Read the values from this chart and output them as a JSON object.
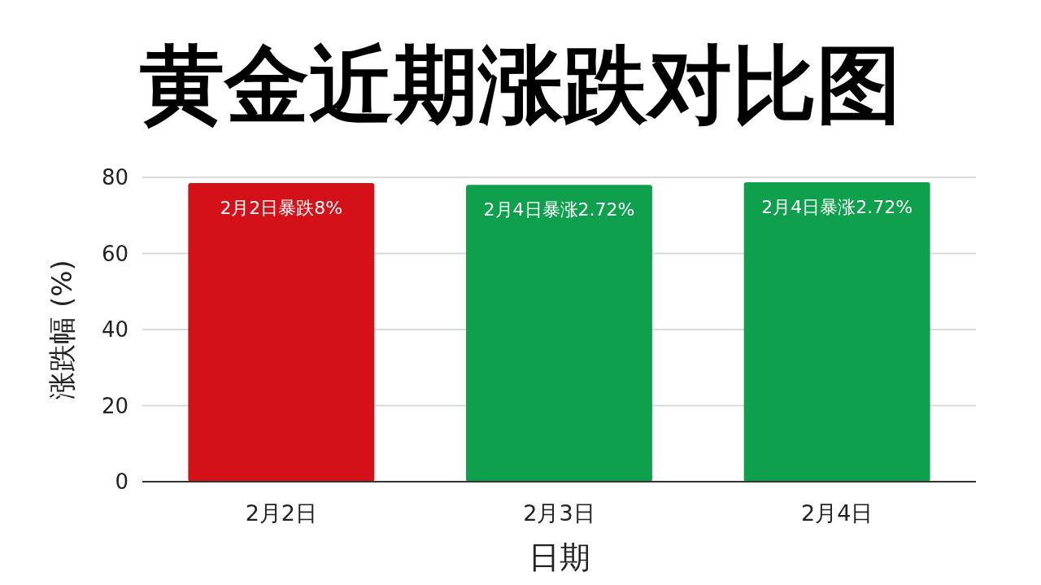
{
  "chart_data": {
    "type": "bar",
    "title": "黄金近期涨跌对比图",
    "xlabel": "日期",
    "ylabel": "涨跌幅 (%)",
    "categories": [
      "2月2日",
      "2月3日",
      "2月4日"
    ],
    "values": [
      78.5,
      78,
      78.7
    ],
    "colors": [
      "#d41118",
      "#0ea04c",
      "#0ea04c"
    ],
    "annotations": [
      {
        "text": "2月2日暴跌8%",
        "x": "2月2日",
        "y": 78.5
      },
      {
        "text": "2月4日暴涨2.72%",
        "x": "2月3日",
        "y": 78
      },
      {
        "text": "2月4日暴涨2.72%",
        "x": "2月4日",
        "y": 78.7
      }
    ],
    "ylim": [
      0,
      80
    ],
    "yticks": [
      0,
      20,
      40,
      60,
      80
    ],
    "grid": "y"
  }
}
